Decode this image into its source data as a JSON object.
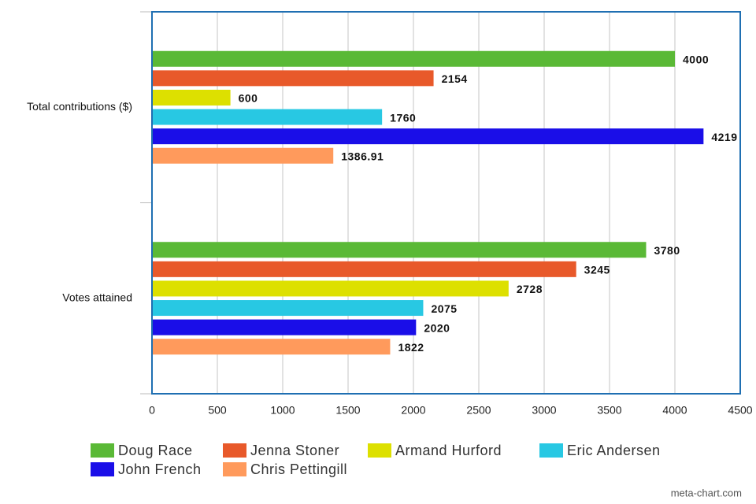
{
  "chart_data": {
    "type": "hbar",
    "categories": [
      "Total contributions ($)",
      "Votes attained"
    ],
    "series": [
      {
        "name": "Doug Race",
        "color": "#5ab936",
        "values": [
          4000,
          3780
        ]
      },
      {
        "name": "Jenna Stoner",
        "color": "#e8592a",
        "values": [
          2154,
          3245
        ]
      },
      {
        "name": "Armand Hurford",
        "color": "#dde000",
        "values": [
          600,
          2728
        ]
      },
      {
        "name": "Eric Andersen",
        "color": "#28c8e3",
        "values": [
          1760,
          2075
        ]
      },
      {
        "name": "John French",
        "color": "#1a0ee8",
        "values": [
          4219,
          2020
        ]
      },
      {
        "name": "Chris Pettingill",
        "color": "#ff9a5c",
        "values": [
          1386.91,
          1822
        ]
      }
    ],
    "xlim": [
      0,
      4500
    ],
    "xticks": [
      0,
      500,
      1000,
      1500,
      2000,
      2500,
      3000,
      3500,
      4000,
      4500
    ],
    "grid": true,
    "legend": "bottom",
    "watermark": "meta-chart.com"
  }
}
